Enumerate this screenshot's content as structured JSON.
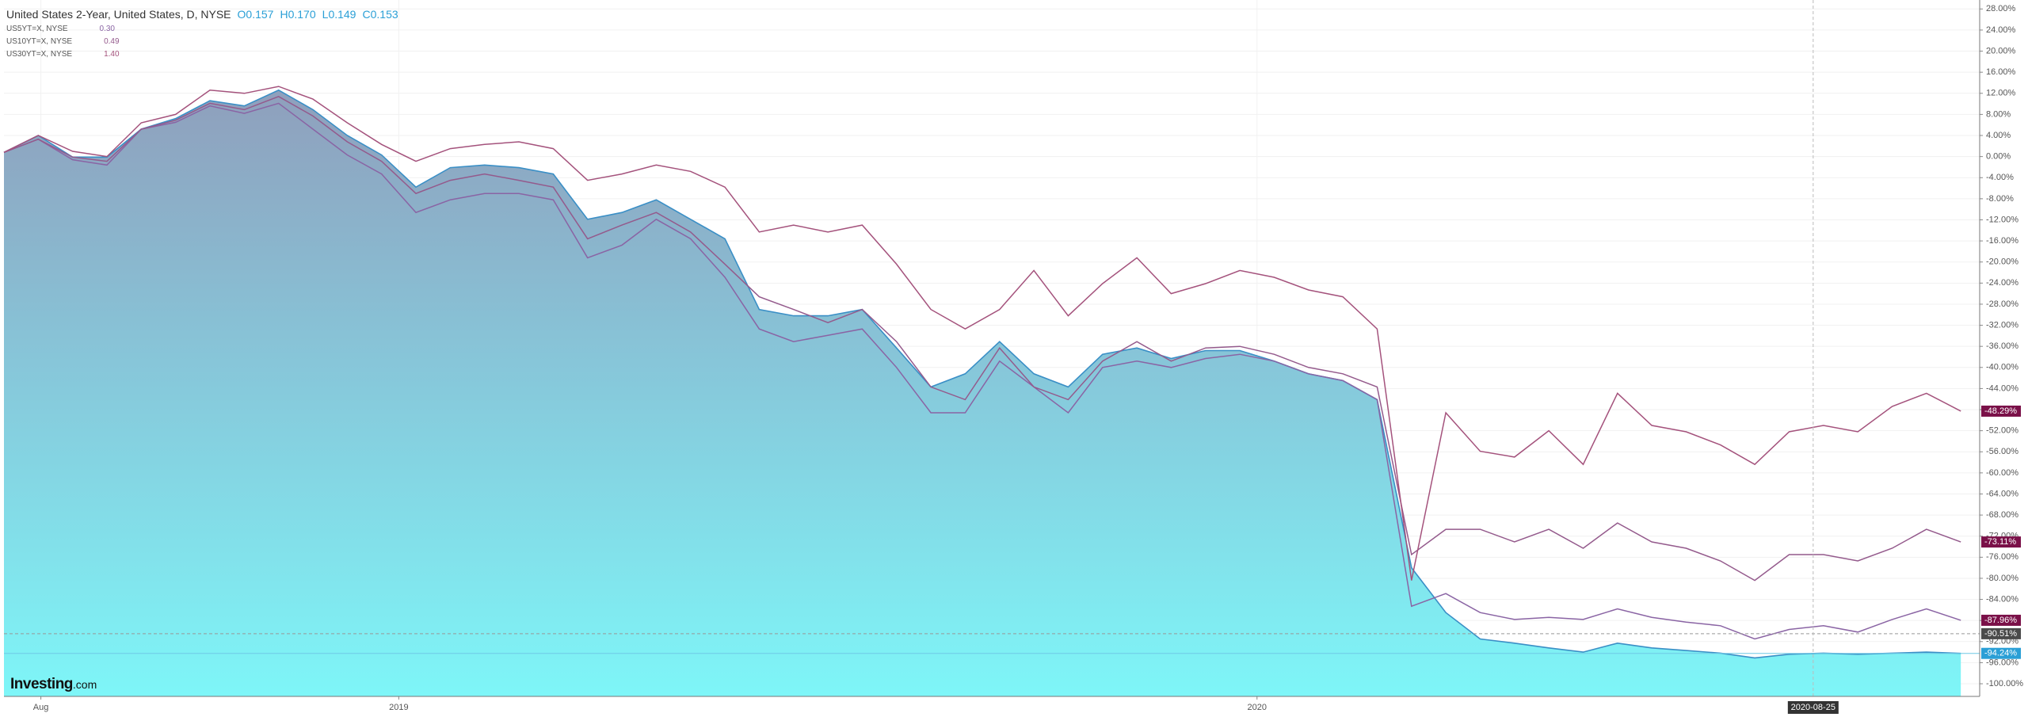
{
  "chart_data": {
    "type": "line",
    "title": "United States 2-Year, United States, D, NYSE",
    "ohlc": [
      {
        "name": "O",
        "value": "0.157"
      },
      {
        "name": "H",
        "value": "0.170"
      },
      {
        "name": "L",
        "value": "0.149"
      },
      {
        "name": "C",
        "value": "0.153"
      }
    ],
    "watermark": [
      "Investing",
      ".com"
    ],
    "x": [
      2018.54,
      2018.58,
      2018.62,
      2018.66,
      2018.7,
      2018.74,
      2018.78,
      2018.82,
      2018.86,
      2018.9,
      2018.94,
      2018.98,
      2019.02,
      2019.06,
      2019.1,
      2019.14,
      2019.18,
      2019.22,
      2019.26,
      2019.3,
      2019.34,
      2019.38,
      2019.42,
      2019.46,
      2019.5,
      2019.54,
      2019.58,
      2019.62,
      2019.66,
      2019.7,
      2019.74,
      2019.78,
      2019.82,
      2019.86,
      2019.9,
      2019.94,
      2019.98,
      2020.02,
      2020.06,
      2020.1,
      2020.14,
      2020.18,
      2020.22,
      2020.26,
      2020.3,
      2020.34,
      2020.38,
      2020.42,
      2020.46,
      2020.5,
      2020.54,
      2020.58,
      2020.62,
      2020.66,
      2020.7,
      2020.74,
      2020.78,
      2020.82
    ],
    "series": [
      {
        "name": "United States 2-Year, United States, D, NYSE",
        "color": "#3a8fc6",
        "fill": "area",
        "last_label": "-94.24%",
        "label_color": "#2a9fd6",
        "values": [
          0.8,
          4,
          -0.1,
          -0.1,
          5.2,
          7.2,
          10.6,
          9.6,
          12.6,
          8.9,
          4,
          0.3,
          -5.8,
          -2.1,
          -1.6,
          -2.1,
          -3.3,
          -11.9,
          -10.6,
          -8.2,
          -11.9,
          -15.6,
          -29,
          -30.2,
          -30.2,
          -29,
          -36.3,
          -43.7,
          -41.2,
          -35.1,
          -41.2,
          -43.7,
          -37.5,
          -36.3,
          -38.3,
          -36.8,
          -36.8,
          -38.8,
          -41.2,
          -42.5,
          -46.1,
          -78,
          -86.5,
          -91.5,
          -92.3,
          -93.2,
          -94,
          -92.3,
          -93.2,
          -93.7,
          -94.2,
          -95.1,
          -94.4,
          -94.2,
          -94.4,
          -94.2,
          -94,
          -94.24
        ]
      },
      {
        "name": "US5YT=X, NYSE",
        "legend_value": "0.30",
        "color": "#8a64a4",
        "last_label": "-87.96%",
        "label_color": "#7a1048",
        "values": [
          0.8,
          3.3,
          -0.6,
          -1.6,
          5.2,
          6.5,
          9.6,
          8.2,
          10.1,
          5.2,
          0.3,
          -3.3,
          -10.6,
          -8.2,
          -7,
          -7,
          -8.2,
          -19.2,
          -16.8,
          -11.9,
          -15.6,
          -22.9,
          -32.7,
          -35.1,
          -33.9,
          -32.7,
          -40,
          -48.6,
          -48.6,
          -38.8,
          -43.7,
          -48.6,
          -40,
          -38.8,
          -40,
          -38.3,
          -37.5,
          -38.8,
          -41.2,
          -42.5,
          -46.1,
          -85.3,
          -82.9,
          -86.5,
          -87.8,
          -87.4,
          -87.8,
          -85.8,
          -87.4,
          -88.3,
          -89,
          -91.5,
          -89.7,
          -89,
          -90.2,
          -87.8,
          -85.8,
          -87.96
        ]
      },
      {
        "name": "US10YT=X, NYSE",
        "legend_value": "0.49",
        "color": "#945a8c",
        "last_label": "-73.11%",
        "label_color": "#7a1048",
        "values": [
          0.8,
          3.3,
          -0.1,
          -0.9,
          5.2,
          6.9,
          10.1,
          8.9,
          11.4,
          7.7,
          2.8,
          -0.9,
          -7,
          -4.5,
          -3.3,
          -4.5,
          -5.8,
          -15.6,
          -13,
          -10.6,
          -14.3,
          -20.4,
          -26.6,
          -29,
          -31.5,
          -29,
          -35.1,
          -43.7,
          -46.1,
          -36.3,
          -43.7,
          -46.1,
          -38.8,
          -35.1,
          -38.8,
          -36.3,
          -36,
          -37.5,
          -40,
          -41.2,
          -43.7,
          -75.5,
          -70.7,
          -70.7,
          -73.1,
          -70.7,
          -74.3,
          -69.5,
          -73.1,
          -74.3,
          -76.7,
          -80.4,
          -75.5,
          -75.5,
          -76.7,
          -74.3,
          -70.7,
          -73.11
        ]
      },
      {
        "name": "US30YT=X, NYSE",
        "legend_value": "1.40",
        "color": "#a4527c",
        "last_label": "-48.29%",
        "label_color": "#7a1048",
        "values": [
          0.8,
          4,
          1,
          0,
          6.4,
          8,
          12.6,
          12,
          13.3,
          10.9,
          6.4,
          2.3,
          -0.9,
          1.5,
          2.3,
          2.8,
          1.5,
          -4.5,
          -3.3,
          -1.6,
          -2.8,
          -5.8,
          -14.3,
          -13,
          -14.3,
          -13,
          -20.4,
          -29,
          -32.7,
          -29,
          -21.6,
          -30.2,
          -24.1,
          -19.2,
          -26,
          -24.1,
          -21.6,
          -22.9,
          -25.3,
          -26.6,
          -32.7,
          -80.4,
          -48.6,
          -55.9,
          -57,
          -52,
          -58.4,
          -44.9,
          -51,
          -52.2,
          -54.7,
          -58.4,
          -52.2,
          -51,
          -52.2,
          -47.4,
          -44.9,
          -48.29
        ]
      }
    ],
    "xlim": [
      2018.54,
      2020.842
    ],
    "ylim": [
      -102.4,
      29.7
    ],
    "xticks": [
      {
        "value": 2018.583,
        "label": "Aug"
      },
      2019,
      2020
    ],
    "yticks": [
      {
        "value": 28,
        "label": "28.00%"
      },
      {
        "value": 24,
        "label": "24.00%"
      },
      {
        "value": 20,
        "label": "20.00%"
      },
      {
        "value": 16,
        "label": "16.00%"
      },
      {
        "value": 12,
        "label": "12.00%"
      },
      {
        "value": 8,
        "label": "8.00%"
      },
      {
        "value": 4,
        "label": "4.00%"
      },
      {
        "value": 0,
        "label": "0.00%"
      },
      {
        "value": -4,
        "label": "-4.00%"
      },
      {
        "value": -8,
        "label": "-8.00%"
      },
      {
        "value": -12,
        "label": "-12.00%"
      },
      {
        "value": -16,
        "label": "-16.00%"
      },
      {
        "value": -20,
        "label": "-20.00%"
      },
      {
        "value": -24,
        "label": "-24.00%"
      },
      {
        "value": -28,
        "label": "-28.00%"
      },
      {
        "value": -32,
        "label": "-32.00%"
      },
      {
        "value": -36,
        "label": "-36.00%"
      },
      {
        "value": -40,
        "label": "-40.00%"
      },
      {
        "value": -44,
        "label": "-44.00%"
      },
      {
        "value": -48,
        "label": "-48.00%"
      },
      {
        "value": -52,
        "label": "-52.00%"
      },
      {
        "value": -56,
        "label": "-56.00%"
      },
      {
        "value": -60,
        "label": "-60.00%"
      },
      {
        "value": -64,
        "label": "-64.00%"
      },
      {
        "value": -68,
        "label": "-68.00%"
      },
      {
        "value": -72,
        "label": "-72.00%"
      },
      {
        "value": -76,
        "label": "-76.00%"
      },
      {
        "value": -80,
        "label": "-80.00%"
      },
      {
        "value": -84,
        "label": "-84.00%"
      },
      {
        "value": -88,
        "label": "-88.00%"
      },
      {
        "value": -92,
        "label": "-92.00%"
      },
      {
        "value": -96,
        "label": "-96.00%"
      },
      {
        "value": -100,
        "label": "-100.00%"
      }
    ],
    "crosshair": {
      "x": {
        "value": 2020.648,
        "label": "2020-08-25"
      },
      "y": {
        "value": -90.51,
        "label": "-90.51%"
      }
    },
    "grid": true
  }
}
